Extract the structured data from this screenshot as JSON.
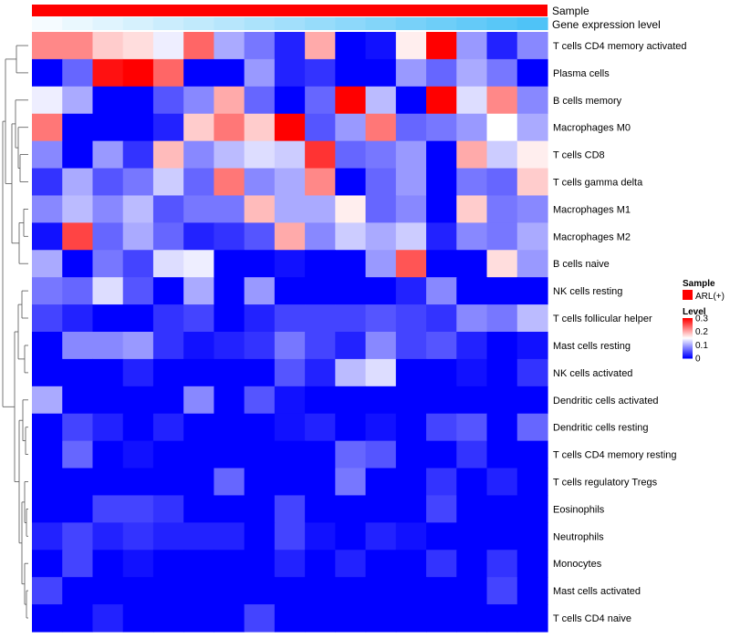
{
  "chart_data": {
    "type": "heatmap",
    "title": "",
    "columns": 17,
    "annotations": [
      {
        "name": "Sample",
        "color": "#ff0000"
      },
      {
        "name": "Gene expression level",
        "gradient": [
          "#ffffff",
          "#4fc3f7"
        ]
      }
    ],
    "rows": [
      "T cells CD4 memory activated",
      "Plasma cells",
      "B cells memory",
      "Macrophages M0",
      "T cells CD8",
      "T cells gamma delta",
      "Macrophages M1",
      "Macrophages M2",
      "B cells naive",
      "NK cells resting",
      "T cells follicular helper",
      "Mast cells resting",
      "NK cells activated",
      "Dendritic cells activated",
      "Dendritic cells resting",
      "T cells CD4 memory resting",
      "T cells regulatory  Tregs",
      "Eosinophils",
      "Neutrophils",
      "Monocytes",
      "Mast cells activated",
      "T cells CD4 naive"
    ],
    "values": [
      [
        0.22,
        0.22,
        0.18,
        0.17,
        0.14,
        0.24,
        0.1,
        0.07,
        0.02,
        0.2,
        0.0,
        0.01,
        0.16,
        0.3,
        0.09,
        0.02,
        0.08
      ],
      [
        0.0,
        0.06,
        0.29,
        0.3,
        0.24,
        0.0,
        0.0,
        0.09,
        0.02,
        0.03,
        0.0,
        0.0,
        0.09,
        0.06,
        0.1,
        0.07,
        0.0
      ],
      [
        0.14,
        0.1,
        0.0,
        0.0,
        0.05,
        0.08,
        0.2,
        0.06,
        0.0,
        0.06,
        0.3,
        0.11,
        0.0,
        0.3,
        0.13,
        0.22,
        0.08
      ],
      [
        0.23,
        0.0,
        0.0,
        0.0,
        0.02,
        0.18,
        0.23,
        0.18,
        0.3,
        0.05,
        0.09,
        0.23,
        0.06,
        0.07,
        0.09,
        0.15,
        0.1
      ],
      [
        0.08,
        0.0,
        0.09,
        0.03,
        0.19,
        0.08,
        0.11,
        0.13,
        0.12,
        0.27,
        0.06,
        0.07,
        0.09,
        0.0,
        0.2,
        0.12,
        0.16
      ],
      [
        0.03,
        0.1,
        0.05,
        0.07,
        0.12,
        0.06,
        0.23,
        0.08,
        0.1,
        0.22,
        0.0,
        0.06,
        0.09,
        0.0,
        0.07,
        0.06,
        0.18
      ],
      [
        0.08,
        0.11,
        0.08,
        0.11,
        0.05,
        0.07,
        0.07,
        0.19,
        0.1,
        0.1,
        0.16,
        0.06,
        0.08,
        0.0,
        0.18,
        0.07,
        0.08
      ],
      [
        0.01,
        0.26,
        0.06,
        0.1,
        0.06,
        0.02,
        0.03,
        0.05,
        0.2,
        0.08,
        0.12,
        0.1,
        0.12,
        0.02,
        0.08,
        0.07,
        0.1
      ],
      [
        0.1,
        0.0,
        0.07,
        0.04,
        0.13,
        0.14,
        0.0,
        0.0,
        0.01,
        0.0,
        0.0,
        0.09,
        0.25,
        0.0,
        0.0,
        0.17,
        0.09
      ],
      [
        0.07,
        0.06,
        0.13,
        0.05,
        0.0,
        0.1,
        0.0,
        0.09,
        0.0,
        0.0,
        0.0,
        0.0,
        0.02,
        0.08,
        0.0,
        0.0,
        0.0
      ],
      [
        0.04,
        0.02,
        0.0,
        0.0,
        0.03,
        0.04,
        0.0,
        0.02,
        0.04,
        0.04,
        0.04,
        0.05,
        0.04,
        0.03,
        0.08,
        0.07,
        0.11
      ],
      [
        0.0,
        0.08,
        0.08,
        0.09,
        0.03,
        0.01,
        0.02,
        0.03,
        0.07,
        0.04,
        0.02,
        0.08,
        0.04,
        0.05,
        0.02,
        0.0,
        0.01
      ],
      [
        0.0,
        0.0,
        0.0,
        0.02,
        0.0,
        0.0,
        0.0,
        0.0,
        0.05,
        0.02,
        0.11,
        0.13,
        0.0,
        0.0,
        0.01,
        0.0,
        0.03
      ],
      [
        0.1,
        0.0,
        0.0,
        0.0,
        0.0,
        0.08,
        0.0,
        0.05,
        0.01,
        0.0,
        0.0,
        0.0,
        0.0,
        0.0,
        0.0,
        0.0,
        0.0
      ],
      [
        0.0,
        0.04,
        0.02,
        0.0,
        0.02,
        0.0,
        0.0,
        0.0,
        0.01,
        0.02,
        0.0,
        0.01,
        0.0,
        0.04,
        0.05,
        0.0,
        0.06
      ],
      [
        0.0,
        0.06,
        0.0,
        0.01,
        0.0,
        0.0,
        0.0,
        0.0,
        0.0,
        0.0,
        0.06,
        0.05,
        0.0,
        0.0,
        0.03,
        0.0,
        0.0
      ],
      [
        0.0,
        0.0,
        0.0,
        0.0,
        0.0,
        0.0,
        0.06,
        0.0,
        0.0,
        0.0,
        0.07,
        0.0,
        0.0,
        0.03,
        0.0,
        0.02,
        0.0
      ],
      [
        0.0,
        0.0,
        0.04,
        0.04,
        0.03,
        0.0,
        0.0,
        0.0,
        0.04,
        0.0,
        0.0,
        0.0,
        0.0,
        0.04,
        0.0,
        0.0,
        0.0
      ],
      [
        0.02,
        0.04,
        0.02,
        0.03,
        0.02,
        0.02,
        0.02,
        0.0,
        0.04,
        0.01,
        0.0,
        0.02,
        0.01,
        0.0,
        0.0,
        0.0,
        0.0
      ],
      [
        0.0,
        0.04,
        0.0,
        0.01,
        0.0,
        0.0,
        0.0,
        0.0,
        0.02,
        0.0,
        0.02,
        0.0,
        0.0,
        0.03,
        0.0,
        0.03,
        0.0
      ],
      [
        0.04,
        0.0,
        0.0,
        0.0,
        0.0,
        0.0,
        0.0,
        0.0,
        0.0,
        0.0,
        0.0,
        0.0,
        0.0,
        0.0,
        0.0,
        0.04,
        0.0
      ],
      [
        0.0,
        0.0,
        0.02,
        0.0,
        0.0,
        0.0,
        0.0,
        0.04,
        0.0,
        0.0,
        0.0,
        0.0,
        0.0,
        0.0,
        0.0,
        0.0,
        0.0
      ]
    ],
    "gene_expression_level": [
      0.05,
      0.1,
      0.15,
      0.2,
      0.25,
      0.3,
      0.35,
      0.4,
      0.45,
      0.5,
      0.55,
      0.6,
      0.65,
      0.7,
      0.75,
      0.8,
      0.85
    ],
    "color_scale": {
      "min": 0,
      "mid": 0.15,
      "max": 0.3,
      "low_color": "#0000ff",
      "mid_color": "#ffffff",
      "high_color": "#ff0000"
    },
    "legend": {
      "position": "right",
      "sample_title": "Sample",
      "sample_items": [
        {
          "label": "ARL(+)",
          "color": "#ff0000"
        }
      ],
      "level_title": "Level",
      "level_ticks": [
        "0.3",
        "0.2",
        "0.1",
        "0"
      ]
    }
  }
}
